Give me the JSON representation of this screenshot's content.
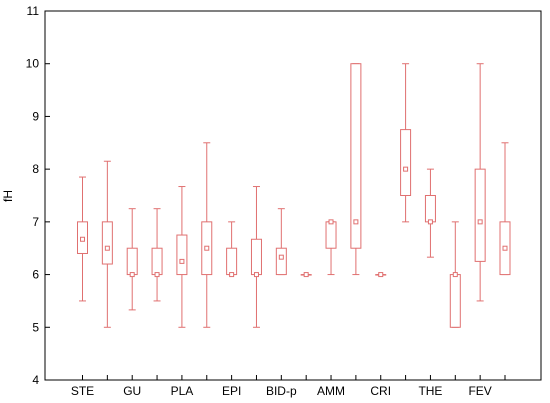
{
  "chart_data": {
    "type": "boxplot",
    "ylabel": "fH",
    "xlabel": "",
    "ylim": [
      4,
      11
    ],
    "yticks": [
      4,
      5,
      6,
      7,
      8,
      9,
      10,
      11
    ],
    "grid": false,
    "color": "#e07070",
    "categories": [
      "STE",
      "GU",
      "PLA",
      "EPI",
      "BID-p",
      "AMM",
      "CRI",
      "THE",
      "FEV"
    ],
    "boxes": [
      {
        "category": "STE",
        "min": 5.5,
        "q1": 6.4,
        "median": 6.67,
        "q3": 7.0,
        "max": 7.85
      },
      {
        "category": "",
        "min": 5.0,
        "q1": 6.2,
        "median": 6.5,
        "q3": 7.0,
        "max": 8.15
      },
      {
        "category": "GU",
        "min": 5.33,
        "q1": 6.0,
        "median": 6.0,
        "q3": 6.5,
        "max": 7.25
      },
      {
        "category": "",
        "min": 5.5,
        "q1": 6.0,
        "median": 6.0,
        "q3": 6.5,
        "max": 7.25
      },
      {
        "category": "PLA",
        "min": 5.0,
        "q1": 6.0,
        "median": 6.25,
        "q3": 6.75,
        "max": 7.67
      },
      {
        "category": "",
        "min": 5.0,
        "q1": 6.0,
        "median": 6.5,
        "q3": 7.0,
        "max": 8.5
      },
      {
        "category": "EPI",
        "min": 6.0,
        "q1": 6.0,
        "median": 6.0,
        "q3": 6.5,
        "max": 7.0
      },
      {
        "category": "",
        "min": 5.0,
        "q1": 6.0,
        "median": 6.0,
        "q3": 6.67,
        "max": 7.67
      },
      {
        "category": "BID-p",
        "min": 6.0,
        "q1": 6.0,
        "median": 6.33,
        "q3": 6.5,
        "max": 7.25
      },
      {
        "category": "",
        "min": 6.0,
        "q1": 6.0,
        "median": 6.0,
        "q3": 6.0,
        "max": 6.0
      },
      {
        "category": "AMM",
        "min": 6.0,
        "q1": 6.5,
        "median": 7.0,
        "q3": 7.0,
        "max": 7.0
      },
      {
        "category": "",
        "min": 6.0,
        "q1": 6.5,
        "median": 7.0,
        "q3": 10.0,
        "max": 10.0
      },
      {
        "category": "CRI",
        "min": 6.0,
        "q1": 6.0,
        "median": 6.0,
        "q3": 6.0,
        "max": 6.0
      },
      {
        "category": "",
        "min": 7.0,
        "q1": 7.5,
        "median": 8.0,
        "q3": 8.75,
        "max": 10.0
      },
      {
        "category": "THE",
        "min": 6.33,
        "q1": 7.0,
        "median": 7.0,
        "q3": 7.5,
        "max": 8.0
      },
      {
        "category": "",
        "min": 5.0,
        "q1": 5.0,
        "median": 6.0,
        "q3": 6.0,
        "max": 7.0
      },
      {
        "category": "FEV",
        "min": 5.5,
        "q1": 6.25,
        "median": 7.0,
        "q3": 8.0,
        "max": 10.0
      },
      {
        "category": "",
        "min": 6.0,
        "q1": 6.0,
        "median": 6.5,
        "q3": 7.0,
        "max": 8.5
      }
    ]
  }
}
